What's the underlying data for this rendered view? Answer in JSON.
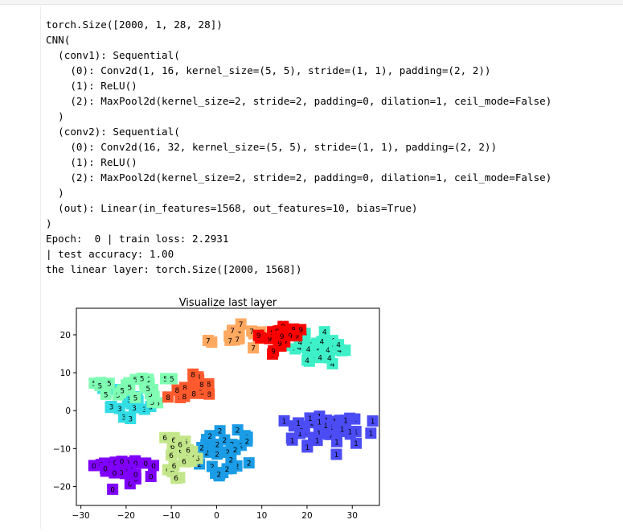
{
  "output": {
    "lines": [
      "torch.Size([2000, 1, 28, 28])",
      "CNN(",
      "  (conv1): Sequential(",
      "    (0): Conv2d(1, 16, kernel_size=(5, 5), stride=(1, 1), padding=(2, 2))",
      "    (1): ReLU()",
      "    (2): MaxPool2d(kernel_size=2, stride=2, padding=0, dilation=1, ceil_mode=False)",
      "  )",
      "  (conv2): Sequential(",
      "    (0): Conv2d(16, 32, kernel_size=(5, 5), stride=(1, 1), padding=(2, 2))",
      "    (1): ReLU()",
      "    (2): MaxPool2d(kernel_size=2, stride=2, padding=0, dilation=1, ceil_mode=False)",
      "  )",
      "  (out): Linear(in_features=1568, out_features=10, bias=True)",
      ")",
      "Epoch:  0 | train loss: 2.2931",
      "| test accuracy: 1.00",
      "the linear layer: torch.Size([2000, 1568])"
    ]
  },
  "chart_data": {
    "type": "scatter",
    "title": "Visualize last layer",
    "xlabel": "",
    "ylabel": "",
    "xlim": [
      -31,
      36
    ],
    "ylim": [
      -25,
      27
    ],
    "xticks": [
      -30,
      -20,
      -10,
      0,
      10,
      20,
      30
    ],
    "yticks": [
      -20,
      -10,
      0,
      10,
      20
    ],
    "grid": false,
    "point_style": "digit label on colored square",
    "clusters": [
      {
        "label": "0",
        "color": "#8000ff",
        "center": [
          -22,
          -15
        ],
        "spread": [
          5,
          3.5
        ],
        "count": 30
      },
      {
        "label": "1",
        "color": "#4c4cf5",
        "center": [
          25,
          -6
        ],
        "spread": [
          7,
          4
        ],
        "count": 45
      },
      {
        "label": "2",
        "color": "#1a9ce6",
        "center": [
          2,
          -11
        ],
        "spread": [
          5,
          5
        ],
        "count": 35
      },
      {
        "label": "3",
        "color": "#33dde6",
        "center": [
          -20,
          2
        ],
        "spread": [
          5,
          3
        ],
        "count": 18
      },
      {
        "label": "4",
        "color": "#3ef0c8",
        "center": [
          22,
          16
        ],
        "spread": [
          6,
          4
        ],
        "count": 30
      },
      {
        "label": "5",
        "color": "#80ffb4",
        "center": [
          -17,
          6
        ],
        "spread": [
          8,
          3
        ],
        "count": 30
      },
      {
        "label": "6",
        "color": "#c4e68a",
        "center": [
          -9,
          -12
        ],
        "spread": [
          4,
          6
        ],
        "count": 28
      },
      {
        "label": "7",
        "color": "#ffa860",
        "center": [
          5,
          19
        ],
        "spread": [
          5,
          3
        ],
        "count": 20
      },
      {
        "label": "8",
        "color": "#ff5a2e",
        "center": [
          -4,
          6
        ],
        "spread": [
          5,
          3
        ],
        "count": 22
      },
      {
        "label": "9",
        "color": "#ff0000",
        "center": [
          14,
          20
        ],
        "spread": [
          4,
          4
        ],
        "count": 25
      }
    ]
  }
}
